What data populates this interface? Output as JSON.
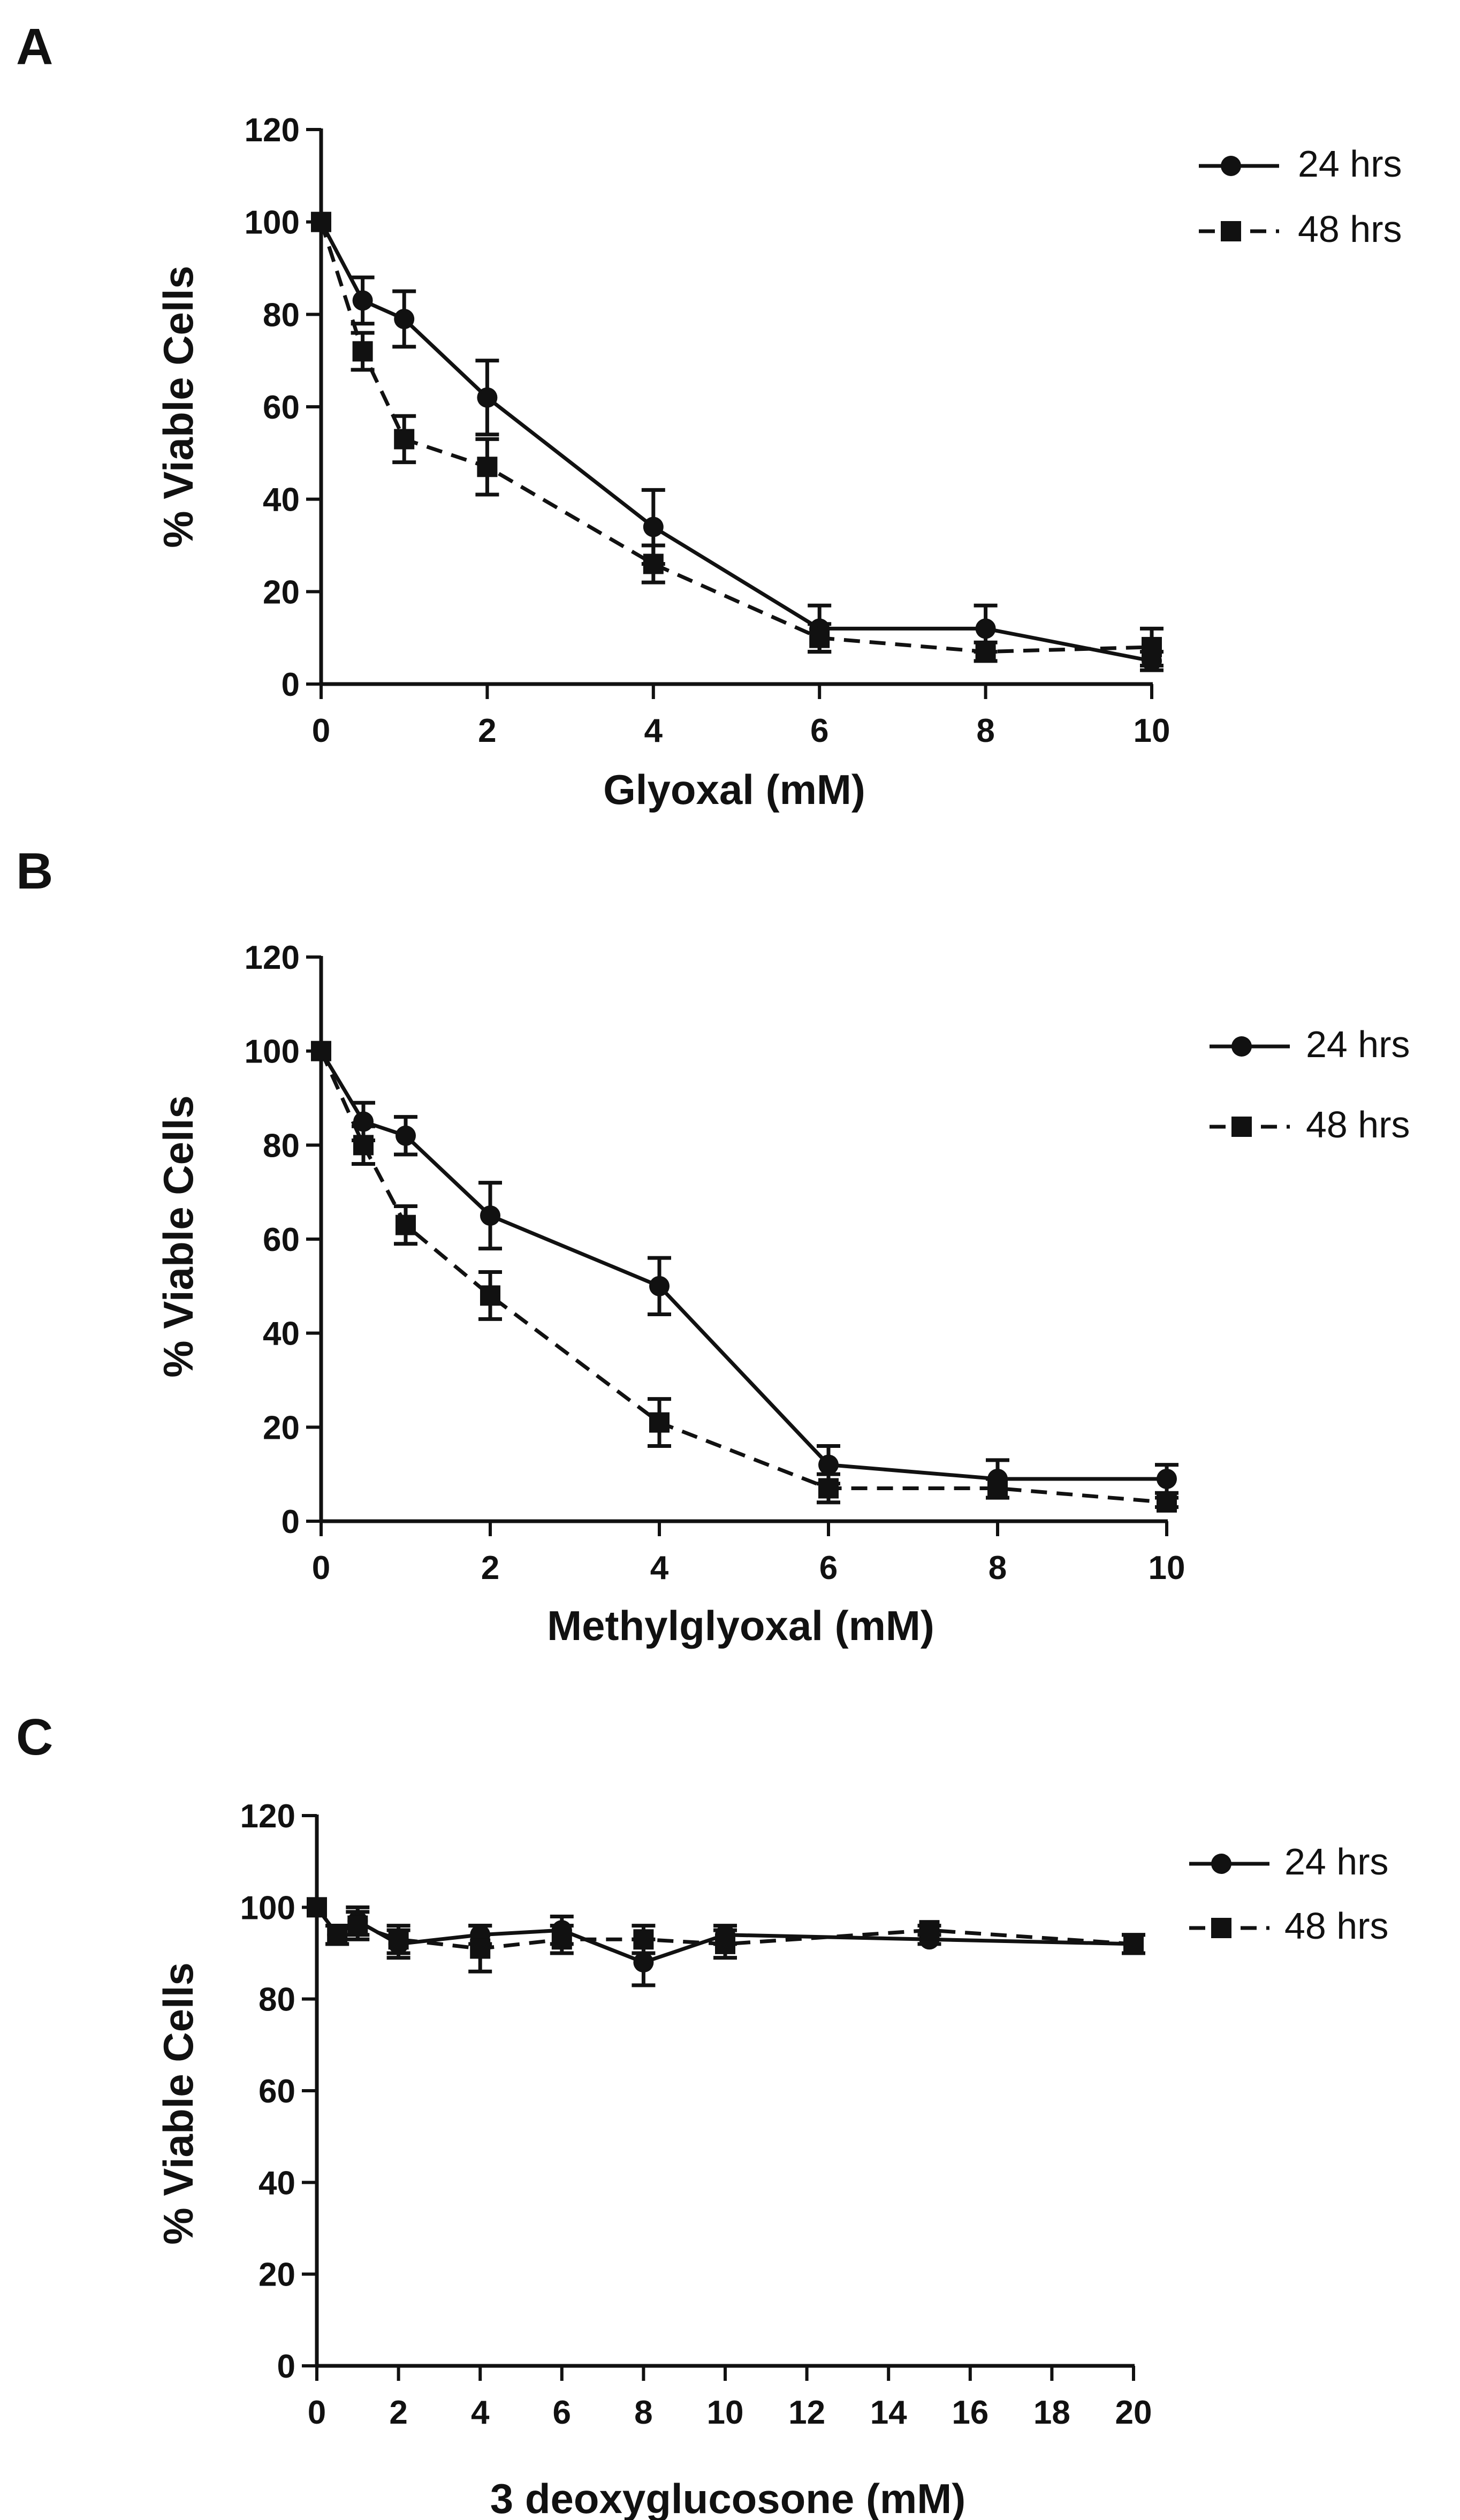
{
  "figure": {
    "panels": [
      {
        "letter": "A",
        "chart_data": {
          "type": "line",
          "title": "",
          "xlabel": "Glyoxal (mM)",
          "ylabel": "% Viable Cells",
          "xlim": [
            0,
            10
          ],
          "ylim": [
            0,
            120
          ],
          "xticks": [
            0,
            2,
            4,
            6,
            8,
            10
          ],
          "yticks": [
            0,
            20,
            40,
            60,
            80,
            100,
            120
          ],
          "grid": false,
          "legend_position": "top-right",
          "series": [
            {
              "name": "24 hrs",
              "marker": "circle",
              "line": "solid",
              "x": [
                0,
                0.5,
                1,
                2,
                4,
                6,
                8,
                10
              ],
              "values": [
                100,
                83,
                79,
                62,
                34,
                12,
                12,
                5
              ],
              "error": [
                0,
                5,
                6,
                8,
                8,
                5,
                5,
                2
              ]
            },
            {
              "name": "48 hrs",
              "marker": "square",
              "line": "dashed",
              "x": [
                0,
                0.5,
                1,
                2,
                4,
                6,
                8,
                10
              ],
              "values": [
                100,
                72,
                53,
                47,
                26,
                10,
                7,
                8
              ],
              "error": [
                0,
                4,
                5,
                6,
                4,
                3,
                2,
                4
              ]
            }
          ]
        }
      },
      {
        "letter": "B",
        "chart_data": {
          "type": "line",
          "title": "",
          "xlabel": "Methylglyoxal (mM)",
          "ylabel": "% Viable Cells",
          "xlim": [
            0,
            10
          ],
          "ylim": [
            0,
            120
          ],
          "xticks": [
            0,
            2,
            4,
            6,
            8,
            10
          ],
          "yticks": [
            0,
            20,
            40,
            60,
            80,
            100,
            120
          ],
          "grid": false,
          "legend_position": "right",
          "series": [
            {
              "name": "24 hrs",
              "marker": "circle",
              "line": "solid",
              "x": [
                0,
                0.5,
                1,
                2,
                4,
                6,
                8,
                10
              ],
              "values": [
                100,
                85,
                82,
                65,
                50,
                12,
                9,
                9
              ],
              "error": [
                0,
                4,
                4,
                7,
                6,
                4,
                4,
                3
              ]
            },
            {
              "name": "48 hrs",
              "marker": "square",
              "line": "dashed",
              "x": [
                0,
                0.5,
                1,
                2,
                4,
                6,
                8,
                10
              ],
              "values": [
                100,
                80,
                63,
                48,
                21,
                7,
                7,
                4
              ],
              "error": [
                0,
                4,
                4,
                5,
                5,
                3,
                2,
                1
              ]
            }
          ]
        }
      },
      {
        "letter": "C",
        "chart_data": {
          "type": "line",
          "title": "",
          "xlabel": "3 deoxyglucosone (mM)",
          "ylabel": "% Viable Cells",
          "xlim": [
            0,
            20
          ],
          "ylim": [
            0,
            120
          ],
          "xticks": [
            0,
            2,
            4,
            6,
            8,
            10,
            12,
            14,
            16,
            18,
            20
          ],
          "yticks": [
            0,
            20,
            40,
            60,
            80,
            100,
            120
          ],
          "grid": false,
          "legend_position": "top-right",
          "series": [
            {
              "name": "24 hrs",
              "marker": "circle",
              "line": "solid",
              "x": [
                0,
                0.5,
                1,
                2,
                4,
                6,
                8,
                10,
                15,
                20
              ],
              "values": [
                100,
                94,
                97,
                92,
                94,
                95,
                88,
                94,
                93,
                92
              ],
              "error": [
                0,
                2,
                3,
                3,
                2,
                3,
                5,
                2,
                1,
                2
              ]
            },
            {
              "name": "48 hrs",
              "marker": "square",
              "line": "dashed",
              "x": [
                0,
                0.5,
                1,
                2,
                4,
                6,
                8,
                10,
                15,
                20
              ],
              "values": [
                100,
                94,
                96,
                93,
                91,
                93,
                93,
                92,
                95,
                92
              ],
              "error": [
                0,
                2,
                3,
                3,
                5,
                3,
                3,
                3,
                1,
                2
              ]
            }
          ]
        }
      }
    ]
  }
}
